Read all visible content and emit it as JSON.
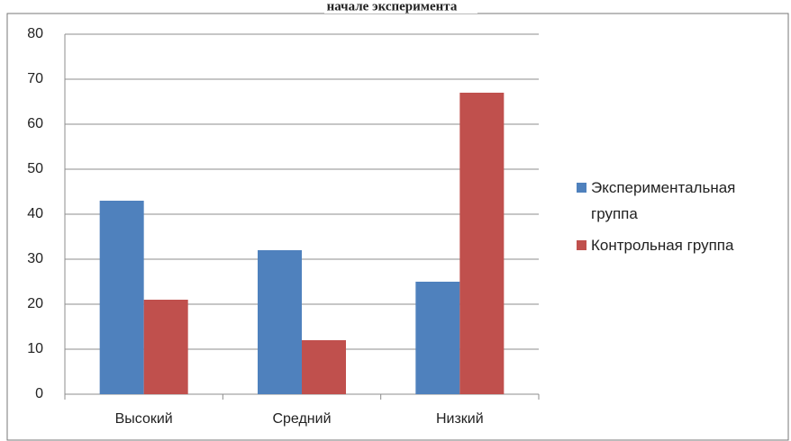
{
  "chart_data": {
    "type": "bar",
    "title": "начале эксперимента",
    "categories": [
      "Высокий",
      "Средний",
      "Низкий"
    ],
    "series": [
      {
        "name": "Экспериментальная группа",
        "color": "#4f81bd",
        "values": [
          43,
          32,
          25
        ]
      },
      {
        "name": "Контрольная группа",
        "color": "#c0504d",
        "values": [
          21,
          12,
          67
        ]
      }
    ],
    "ylim": [
      0,
      80
    ],
    "yticks": [
      0,
      10,
      20,
      30,
      40,
      50,
      60,
      70,
      80
    ],
    "grid": true,
    "legend": "right"
  }
}
